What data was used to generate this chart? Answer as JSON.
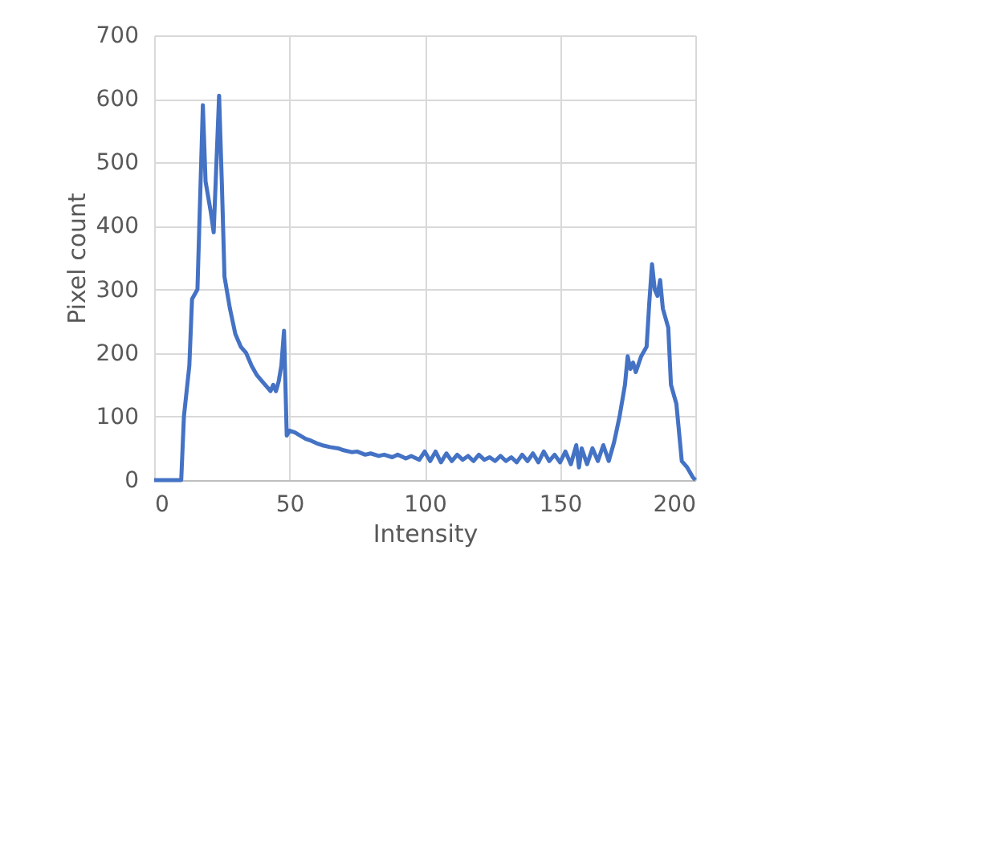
{
  "chart_data": {
    "type": "line",
    "xlabel": "Intensity",
    "ylabel": "Pixel count",
    "xlim": [
      0,
      200
    ],
    "xticks": [
      0,
      50,
      100,
      150,
      200
    ],
    "ylim": [
      0,
      700
    ],
    "yticks": [
      0,
      100,
      200,
      300,
      400,
      500,
      600,
      700
    ],
    "grid": true,
    "marker": "none",
    "line_style": "solid",
    "series": [
      {
        "color": "#4472c4",
        "x": [
          0,
          10,
          11,
          13,
          14,
          16,
          18,
          19,
          21,
          22,
          24,
          25,
          26,
          28,
          30,
          32,
          34,
          36,
          38,
          40,
          42,
          43,
          44,
          45,
          46,
          47,
          48,
          49,
          50,
          52,
          54,
          56,
          58,
          60,
          62,
          65,
          68,
          70,
          73,
          75,
          78,
          80,
          83,
          85,
          88,
          90,
          93,
          95,
          98,
          100,
          102,
          104,
          106,
          108,
          110,
          112,
          114,
          116,
          118,
          120,
          122,
          124,
          126,
          128,
          130,
          132,
          134,
          136,
          138,
          140,
          142,
          144,
          146,
          148,
          150,
          152,
          154,
          156,
          157,
          158,
          160,
          162,
          164,
          166,
          168,
          170,
          172,
          174,
          175,
          176,
          177,
          178,
          180,
          182,
          183,
          184,
          185,
          186,
          187,
          188,
          190,
          191,
          193,
          195,
          197,
          199,
          200
        ],
        "values": [
          0,
          0,
          100,
          180,
          285,
          300,
          590,
          470,
          420,
          390,
          605,
          470,
          320,
          270,
          230,
          210,
          200,
          180,
          165,
          155,
          145,
          140,
          150,
          140,
          155,
          180,
          235,
          70,
          78,
          75,
          70,
          65,
          62,
          58,
          55,
          52,
          50,
          47,
          44,
          45,
          40,
          42,
          38,
          40,
          36,
          40,
          34,
          38,
          32,
          45,
          30,
          45,
          28,
          42,
          30,
          40,
          32,
          38,
          30,
          40,
          32,
          36,
          30,
          38,
          30,
          36,
          28,
          40,
          30,
          42,
          28,
          45,
          30,
          40,
          28,
          45,
          25,
          55,
          20,
          50,
          25,
          50,
          30,
          55,
          30,
          60,
          100,
          150,
          195,
          175,
          185,
          170,
          195,
          210,
          280,
          340,
          300,
          290,
          315,
          270,
          240,
          150,
          120,
          30,
          20,
          5,
          0
        ]
      }
    ]
  }
}
